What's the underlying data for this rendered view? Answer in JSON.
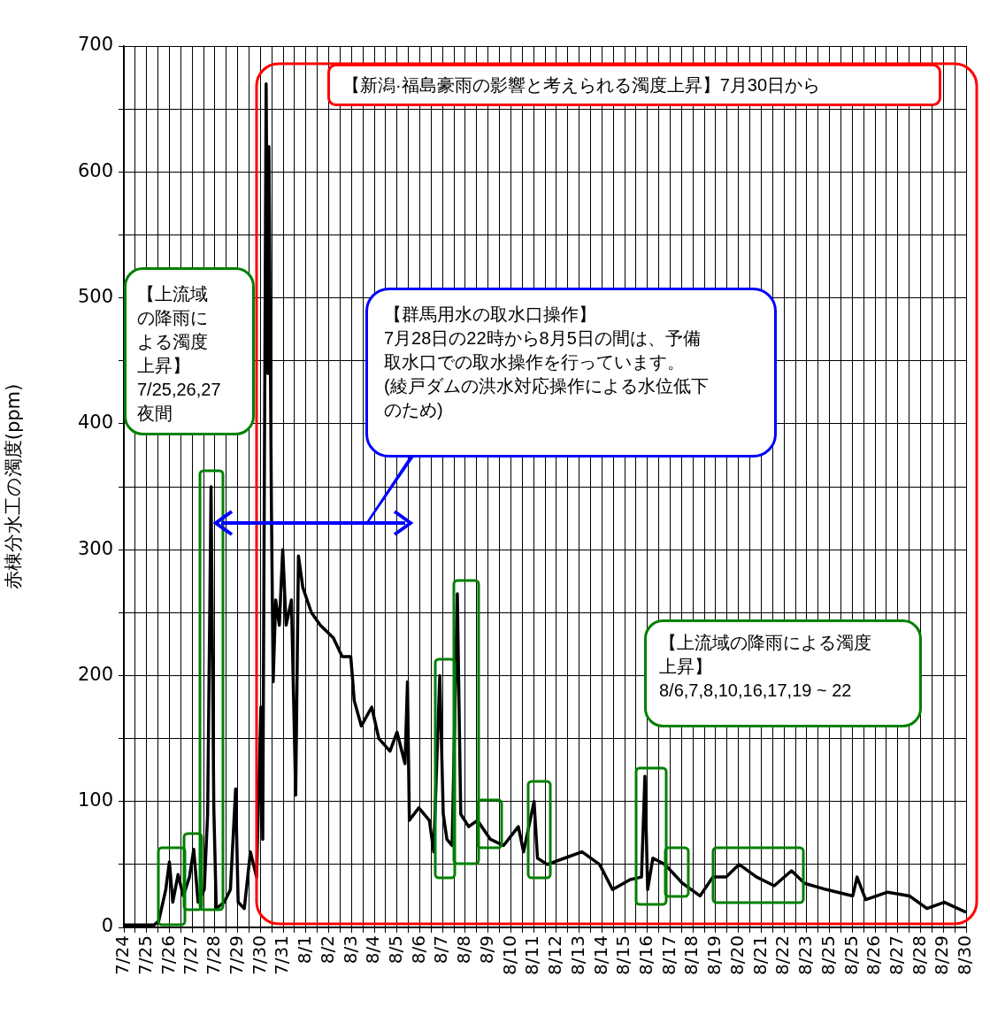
{
  "chart_data": {
    "type": "line",
    "ylabel": "赤棟分水工の濁度(ppm)",
    "x": [
      "--07-24T00:00",
      "--07-25T08:10",
      "--07-25T12:45",
      "--07-25T20:10",
      "--07-26T00:00",
      "--07-26T03:35",
      "--07-26T09:10",
      "--07-26T14:40",
      "--07-26T21:10",
      "--07-27T01:40",
      "--07-27T06:15",
      "--07-27T12:45",
      "--07-27T16:20",
      "--07-27T19:55",
      "--07-27T22:50",
      "--07-28T01:25",
      "--07-28T09:50",
      "--07-28T16:20",
      "--07-28T21:50",
      "--07-29T00:30",
      "--07-29T07:00",
      "--07-29T13:25",
      "--07-29T19:55",
      "--07-30T00:30",
      "--07-30T02:25",
      "--07-30T06:00",
      "--07-30T07:55",
      "--07-30T08:55",
      "--07-30T11:30",
      "--07-30T13:25",
      "--07-30T16:05",
      "--07-30T19:55",
      "--07-30T23:30",
      "--07-31T03:05",
      "--07-31T08:40",
      "--07-31T13:10",
      "--07-31T16:05",
      "--07-31T20:40",
      "--08-01T05:45",
      "--08-01T15:05",
      "--08-02T04:50",
      "--08-02T14:10",
      "--08-02T23:15",
      "--08-03T02:55",
      "--08-03T10:20",
      "--08-03T21:20",
      "--08-04T04:50",
      "--08-04T16:35",
      "--08-05T00:00",
      "--08-05T08:25",
      "--08-05T11:00",
      "--08-05T13:00",
      "--08-05T23:00",
      "--08-06T10:05",
      "--08-06T14:40",
      "--08-06T21:05",
      "--08-07T00:45",
      "--08-07T04:35",
      "--08-07T10:05",
      "--08-07T15:35",
      "--08-07T19:10",
      "--08-08T03:35",
      "--08-08T12:45",
      "--08-09T02:25",
      "--08-09T16:20",
      "--08-10T07:55",
      "--08-10T13:25",
      "--08-11T00:30",
      "--08-11T04:05",
      "--08-11T14:25",
      "--08-12T08:40",
      "--08-13T03:05",
      "--08-13T21:35",
      "--08-14T11:15",
      "--08-15T05:45",
      "--08-15T17:45",
      "--08-15T21:20",
      "--08-16T00:15",
      "--08-16T05:45",
      "--08-16T18:30",
      "--08-17T13:00",
      "--08-18T07:25",
      "--08-18T21:05",
      "--08-19T11:00",
      "--08-20T00:45",
      "--08-20T19:10",
      "--08-21T13:40",
      "--08-22T07:55",
      "--08-22T21:50",
      "--08-23T20:55",
      "--08-25T00:30",
      "--08-25T05:00",
      "--08-25T14:10",
      "--08-26T13:10",
      "--08-27T12:15",
      "--08-28T06:45",
      "--08-29T01:00",
      "--08-30T00:00"
    ],
    "series": [
      {
        "color": "#000000",
        "values": [
          2,
          2,
          5,
          30,
          52,
          20,
          42,
          25,
          40,
          62,
          20,
          30,
          90,
          350,
          95,
          15,
          20,
          30,
          110,
          20,
          15,
          60,
          40,
          175,
          70,
          670,
          440,
          620,
          340,
          195,
          260,
          240,
          300,
          240,
          260,
          105,
          295,
          270,
          250,
          240,
          230,
          215,
          215,
          180,
          160,
          175,
          150,
          140,
          155,
          130,
          195,
          85,
          95,
          85,
          60,
          200,
          90,
          70,
          65,
          265,
          90,
          80,
          85,
          70,
          65,
          80,
          60,
          100,
          55,
          50,
          55,
          60,
          50,
          30,
          38,
          40,
          120,
          30,
          55,
          50,
          35,
          25,
          40,
          40,
          50,
          40,
          33,
          45,
          35,
          30,
          25,
          40,
          22,
          28,
          25,
          15,
          20,
          12
        ]
      }
    ],
    "xlim": [
      "--07-24",
      "--08-30"
    ],
    "xticks": [
      {
        "value": "--07-24",
        "label": "7/24"
      },
      {
        "value": "--07-24T12:00",
        "label": null
      },
      {
        "value": "--07-25",
        "label": "7/25"
      },
      {
        "value": "--07-25T12:00",
        "label": null
      },
      {
        "value": "--07-26",
        "label": "7/26"
      },
      {
        "value": "--07-26T12:00",
        "label": null
      },
      {
        "value": "--07-27",
        "label": "7/27"
      },
      {
        "value": "--07-27T12:00",
        "label": null
      },
      {
        "value": "--07-28",
        "label": "7/28"
      },
      {
        "value": "--07-28T12:00",
        "label": null
      },
      {
        "value": "--07-29",
        "label": "7/29"
      },
      {
        "value": "--07-29T12:00",
        "label": null
      },
      {
        "value": "--07-30",
        "label": "7/30"
      },
      {
        "value": "--07-30T12:00",
        "label": null
      },
      {
        "value": "--07-31",
        "label": "7/31"
      },
      {
        "value": "--07-31T12:00",
        "label": null
      },
      {
        "value": "--08-01",
        "label": "8/1"
      },
      {
        "value": "--08-01T12:00",
        "label": null
      },
      {
        "value": "--08-02",
        "label": "8/2"
      },
      {
        "value": "--08-02T12:00",
        "label": null
      },
      {
        "value": "--08-03",
        "label": "8/3"
      },
      {
        "value": "--08-03T12:00",
        "label": null
      },
      {
        "value": "--08-04",
        "label": "8/4"
      },
      {
        "value": "--08-04T12:00",
        "label": null
      },
      {
        "value": "--08-05",
        "label": "8/5"
      },
      {
        "value": "--08-05T12:00",
        "label": null
      },
      {
        "value": "--08-06",
        "label": "8/6"
      },
      {
        "value": "--08-06T12:00",
        "label": null
      },
      {
        "value": "--08-07",
        "label": "8/7"
      },
      {
        "value": "--08-07T12:00",
        "label": null
      },
      {
        "value": "--08-08",
        "label": "8/8"
      },
      {
        "value": "--08-08T12:00",
        "label": null
      },
      {
        "value": "--08-09",
        "label": "8/9"
      },
      {
        "value": "--08-09T12:00",
        "label": null
      },
      {
        "value": "--08-10",
        "label": "8/10"
      },
      {
        "value": "--08-10T12:00",
        "label": null
      },
      {
        "value": "--08-11",
        "label": "8/11"
      },
      {
        "value": "--08-11T12:00",
        "label": null
      },
      {
        "value": "--08-12",
        "label": "8/12"
      },
      {
        "value": "--08-12T12:00",
        "label": null
      },
      {
        "value": "--08-13",
        "label": "8/13"
      },
      {
        "value": "--08-13T12:00",
        "label": null
      },
      {
        "value": "--08-14",
        "label": "8/14"
      },
      {
        "value": "--08-14T12:00",
        "label": null
      },
      {
        "value": "--08-15",
        "label": "8/15"
      },
      {
        "value": "--08-15T12:00",
        "label": null
      },
      {
        "value": "--08-16",
        "label": "8/16"
      },
      {
        "value": "--08-16T12:00",
        "label": null
      },
      {
        "value": "--08-17",
        "label": "8/17"
      },
      {
        "value": "--08-17T12:00",
        "label": null
      },
      {
        "value": "--08-18",
        "label": "8/18"
      },
      {
        "value": "--08-18T12:00",
        "label": null
      },
      {
        "value": "--08-19",
        "label": "8/19"
      },
      {
        "value": "--08-19T12:00",
        "label": null
      },
      {
        "value": "--08-20",
        "label": "8/20"
      },
      {
        "value": "--08-20T12:00",
        "label": null
      },
      {
        "value": "--08-21",
        "label": "8/21"
      },
      {
        "value": "--08-21T12:00",
        "label": null
      },
      {
        "value": "--08-22",
        "label": "8/22"
      },
      {
        "value": "--08-22T12:00",
        "label": null
      },
      {
        "value": "--08-23",
        "label": "8/23"
      },
      {
        "value": "--08-23T12:00",
        "label": null
      },
      {
        "value": "--08-24",
        "label": "8/25"
      },
      {
        "value": "--08-24T12:00",
        "label": null
      },
      {
        "value": "--08-25",
        "label": "8/25"
      },
      {
        "value": "--08-25T12:00",
        "label": null
      },
      {
        "value": "--08-26",
        "label": "8/26"
      },
      {
        "value": "--08-26T12:00",
        "label": null
      },
      {
        "value": "--08-27",
        "label": "8/27"
      },
      {
        "value": "--08-27T12:00",
        "label": null
      },
      {
        "value": "--08-28",
        "label": "8/28"
      },
      {
        "value": "--08-28T12:00",
        "label": null
      },
      {
        "value": "--08-29",
        "label": "8/29"
      },
      {
        "value": "--08-29T12:00",
        "label": null
      },
      {
        "value": "--08-30",
        "label": "8/30"
      }
    ],
    "ylim": [
      0,
      700
    ],
    "yticks": [
      0,
      {
        "value": 50,
        "label": null
      },
      100,
      {
        "value": 150,
        "label": null
      },
      200,
      {
        "value": 250,
        "label": null
      },
      300,
      {
        "value": 350,
        "label": null
      },
      400,
      {
        "value": 450,
        "label": null
      },
      500,
      {
        "value": 550,
        "label": null
      },
      600,
      {
        "value": 650,
        "label": null
      },
      700
    ],
    "grid": true,
    "legend": false,
    "marker": "none",
    "line_style": "solid",
    "annotations": [
      "【新潟·福島豪雨の影響と考えられる濁度上昇】7月30日から",
      "【上流域の降雨による濁度上昇】\n7/25,26,27\n夜間",
      "【群馬用水の取水口操作】\n7月28日の22時から8月5日の間は、予備取水口での取水操作を行っています。\n(綾戸ダムの洪水対応操作による水位低下のため)",
      "【上流域の降雨による濁度上昇】\n8/6,7,8,10,16,17,19 ~ 22"
    ]
  }
}
